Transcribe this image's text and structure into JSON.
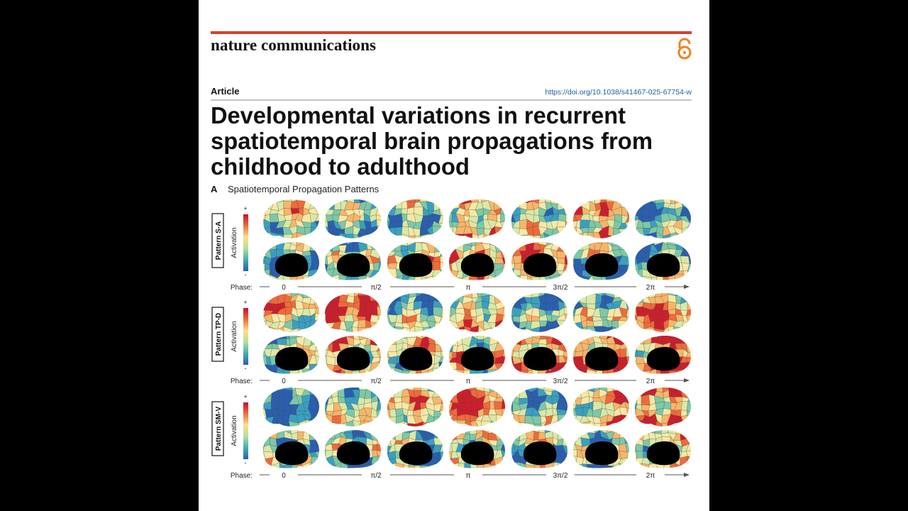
{
  "header": {
    "journal": "nature communications",
    "article_type": "Article",
    "doi": "https://doi.org/10.1038/s41467-025-67754-w"
  },
  "title_lines": [
    "Developmental variations in recurrent",
    "spatiotemporal brain propagations from",
    "childhood to adulthood"
  ],
  "figure": {
    "panel_label": "A",
    "panel_title": "Spatiotemporal Propagation Patterns",
    "colorbar": {
      "plus": "+",
      "minus": "-",
      "label": "Activation"
    },
    "phase_label": "Phase:",
    "phase_ticks": [
      "0",
      "π/2",
      "π",
      "3π/2",
      "2π"
    ],
    "patterns": [
      {
        "label": "Pattern S-A"
      },
      {
        "label": "Pattern TP-D"
      },
      {
        "label": "Pattern SM-V"
      }
    ]
  }
}
